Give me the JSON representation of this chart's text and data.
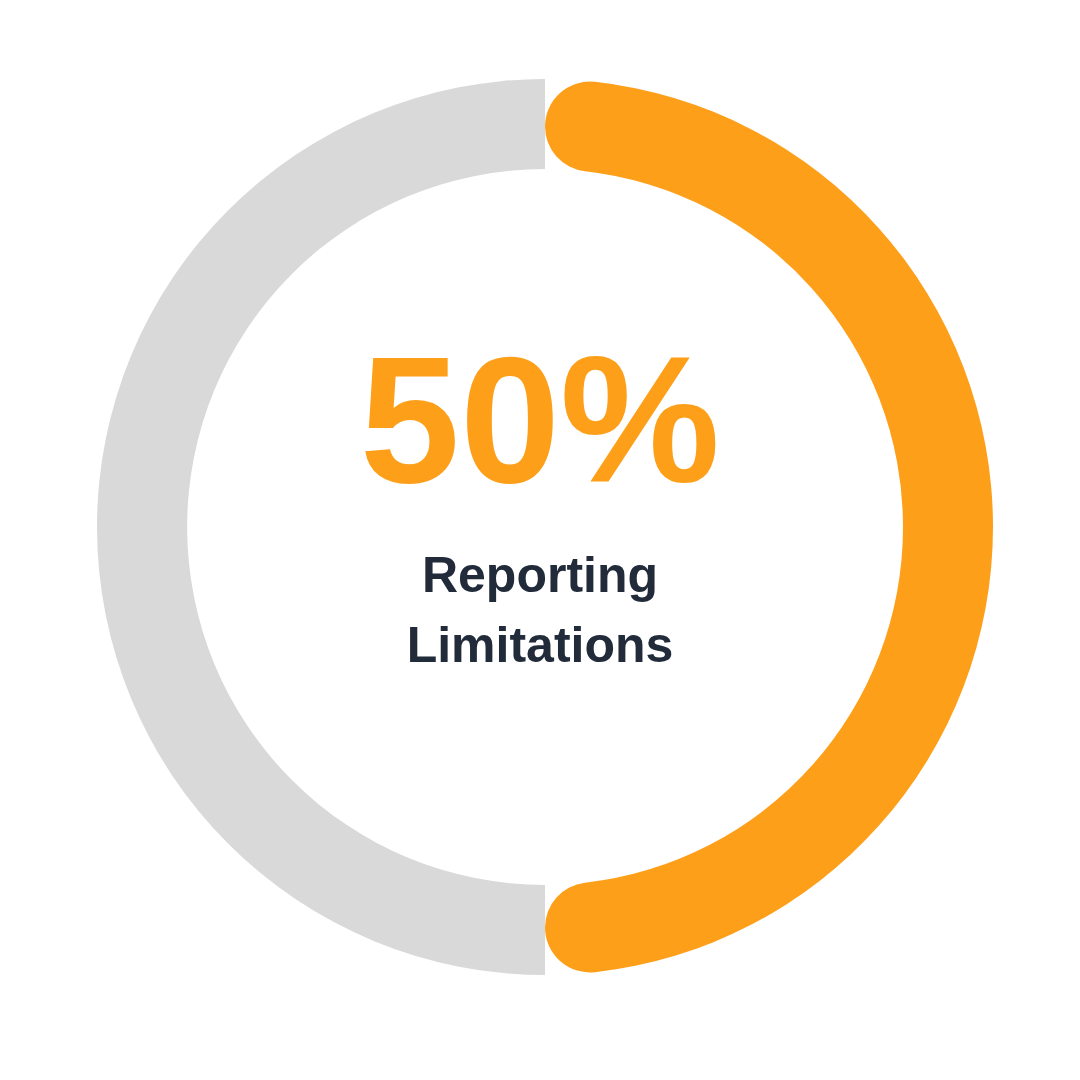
{
  "chart_data": {
    "type": "donut",
    "categories": [
      "Reporting Limitations",
      null
    ],
    "values": [
      50,
      50
    ],
    "colors": [
      "#fe9f1a",
      "#d9d9d9"
    ],
    "value_labels": [
      "50%",
      null
    ]
  }
}
